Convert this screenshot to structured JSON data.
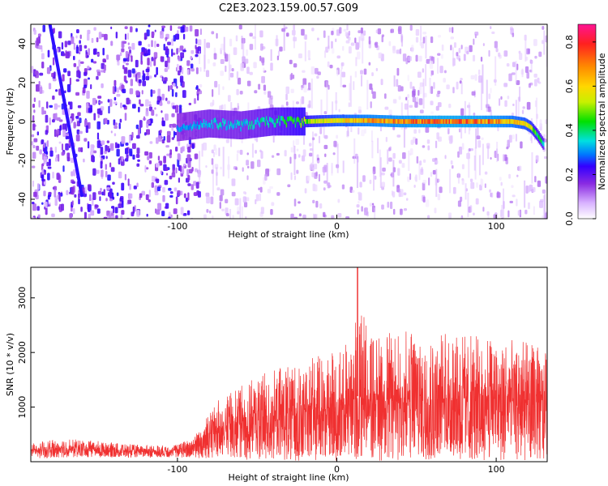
{
  "page": {
    "title": "C2E3.2023.159.00.57.G09"
  },
  "chart_data": [
    {
      "type": "heatmap",
      "title": "C2E3.2023.159.00.57.G09",
      "xlabel": "Height of straight line (km)",
      "ylabel": "Frequency (Hz)",
      "xlim": [
        -192,
        132
      ],
      "ylim": [
        -50,
        50
      ],
      "x_ticks": [
        -100,
        0,
        100
      ],
      "x_tick_labels": [
        "-100",
        "0",
        "100"
      ],
      "y_ticks": [
        -40,
        -20,
        0,
        20,
        40
      ],
      "y_tick_labels": [
        "-40",
        "-20",
        "0",
        "20",
        "40"
      ],
      "grid": false,
      "colorbar": {
        "label": "Normalized spectral amplitude",
        "range": [
          0,
          0.88
        ],
        "ticks": [
          0.0,
          0.2,
          0.4,
          0.6,
          0.8
        ],
        "tick_labels": [
          "0.0",
          "0.2",
          "0.4",
          "0.6",
          "0.8"
        ],
        "colormap": [
          "#ffffff",
          "#d9b3ff",
          "#8a2be2",
          "#3300ff",
          "#0077ff",
          "#00e0e0",
          "#00e000",
          "#c8f000",
          "#ffd700",
          "#ff8c00",
          "#ff2020",
          "#ff1493"
        ]
      },
      "signal_track": {
        "description_values": "peak frequency (Hz) vs height (km)",
        "x": [
          -100,
          -80,
          -60,
          -40,
          -20,
          0,
          20,
          40,
          60,
          80,
          100,
          110,
          118,
          122,
          126,
          130
        ],
        "y": [
          -3,
          -1,
          -2,
          0,
          0,
          0.5,
          0.5,
          0,
          0,
          0,
          0,
          0,
          -1,
          -3,
          -7,
          -12
        ],
        "amplitude": [
          0.35,
          0.4,
          0.4,
          0.45,
          0.55,
          0.65,
          0.72,
          0.75,
          0.78,
          0.78,
          0.75,
          0.7,
          0.65,
          0.6,
          0.5,
          0.45
        ]
      },
      "diagonal_feature": {
        "x": [
          -180,
          -160
        ],
        "y": [
          50,
          -38
        ]
      }
    },
    {
      "type": "area",
      "title": "",
      "xlabel": "Height of straight line (km)",
      "ylabel": "SNR (10 * v/v)",
      "xlim": [
        -192,
        132
      ],
      "ylim": [
        0,
        3560
      ],
      "x_ticks": [
        -100,
        0,
        100
      ],
      "x_tick_labels": [
        "-100",
        "0",
        "100"
      ],
      "y_ticks": [
        1000,
        2000,
        3000
      ],
      "y_tick_labels": [
        "1000",
        "2000",
        "3000"
      ],
      "color": "#f03030",
      "envelope": {
        "x": [
          -192,
          -170,
          -150,
          -130,
          -110,
          -100,
          -90,
          -80,
          -70,
          -60,
          -50,
          -40,
          -30,
          -20,
          -10,
          0,
          10,
          13,
          20,
          30,
          40,
          50,
          60,
          70,
          80,
          90,
          100,
          110,
          120,
          132
        ],
        "upper": [
          350,
          420,
          380,
          320,
          300,
          320,
          450,
          900,
          1300,
          1400,
          1550,
          1700,
          1800,
          1900,
          2000,
          2100,
          2200,
          3560,
          2300,
          2350,
          2400,
          2400,
          2400,
          2350,
          2350,
          2300,
          2300,
          2250,
          2200,
          2000
        ],
        "lower": [
          50,
          80,
          80,
          80,
          80,
          80,
          60,
          60,
          50,
          40,
          30,
          30,
          20,
          20,
          10,
          10,
          10,
          10,
          10,
          10,
          10,
          10,
          10,
          10,
          10,
          10,
          10,
          10,
          10,
          10
        ],
        "mean": [
          200,
          230,
          220,
          200,
          190,
          220,
          300,
          500,
          650,
          700,
          750,
          800,
          850,
          900,
          950,
          1000,
          1050,
          1100,
          1100,
          1150,
          1150,
          1150,
          1150,
          1150,
          1150,
          1150,
          1150,
          1150,
          1100,
          1050
        ]
      }
    }
  ]
}
